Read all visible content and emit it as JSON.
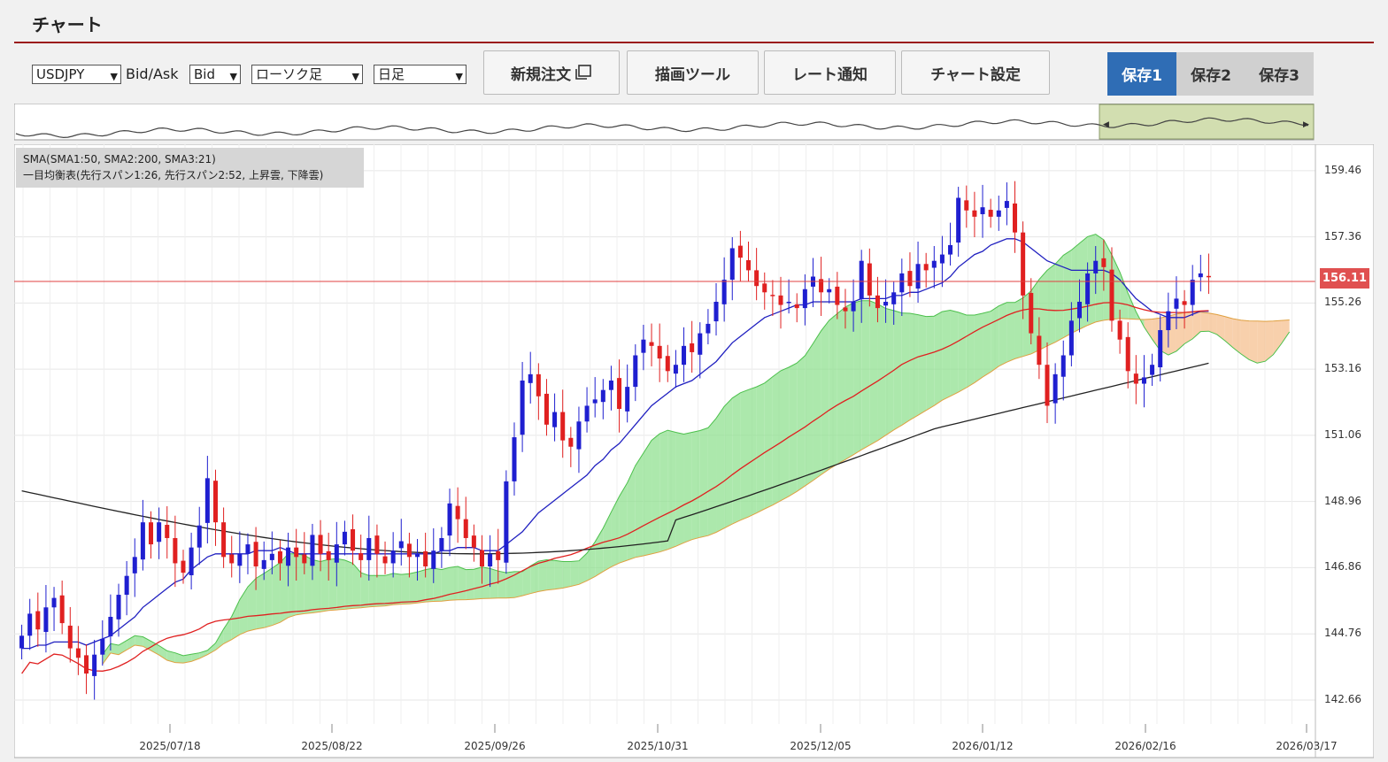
{
  "header": {
    "title": "チャート"
  },
  "toolbar": {
    "symbol": "USDJPY",
    "bidask_label": "Bid/Ask",
    "bidask_value": "Bid",
    "chart_type": "ローソク足",
    "period": "日足",
    "buttons": {
      "new_order": "新規注文",
      "drawing_tool": "描画ツール",
      "rate_alert": "レート通知",
      "chart_settings": "チャート設定"
    },
    "save_tabs": [
      "保存1",
      "保存2",
      "保存3"
    ],
    "active_save": 0
  },
  "legend": {
    "line1": "SMA(SMA1:50, SMA2:200, SMA3:21)",
    "line2": "一目均衡表(先行スパン1:26, 先行スパン2:52, 上昇雲, 下降雲)"
  },
  "current_price": "156.11",
  "colors": {
    "up": "#1f1fd0",
    "down": "#e02020",
    "sma50": "#e02020",
    "sma200": "#222222",
    "sma21": "#2020c0",
    "cloud_up": "#90e090",
    "cloud_down": "#f5c090",
    "accent": "#2f6db5"
  },
  "chart_data": {
    "type": "candlestick",
    "y_ticks": [
      "159.46",
      "157.36",
      "155.26",
      "153.16",
      "151.06",
      "148.96",
      "146.86",
      "144.76",
      "142.66"
    ],
    "x_ticks": [
      "2025/07/18",
      "2025/08/22",
      "2025/09/26",
      "2025/10/31",
      "2025/12/05",
      "2026/01/12",
      "2026/02/16",
      "2026/03/17"
    ],
    "ylim": [
      141.9,
      160.3
    ],
    "closes": [
      144.7,
      145.4,
      144.9,
      145.6,
      145.9,
      145.1,
      144.3,
      144.0,
      143.5,
      144.1,
      144.6,
      145.3,
      146.0,
      146.6,
      147.2,
      148.3,
      147.6,
      148.3,
      147.8,
      147.0,
      146.7,
      147.5,
      148.2,
      149.7,
      148.3,
      147.2,
      147.0,
      147.3,
      147.6,
      146.9,
      147.1,
      147.3,
      147.0,
      147.5,
      147.2,
      147.0,
      147.9,
      147.3,
      147.1,
      147.6,
      148.0,
      147.4,
      147.1,
      147.8,
      147.3,
      147.0,
      147.4,
      147.7,
      147.2,
      147.3,
      146.9,
      147.4,
      147.8,
      148.9,
      148.4,
      147.8,
      147.5,
      146.9,
      147.3,
      147.1,
      149.6,
      151.0,
      152.8,
      153.0,
      152.3,
      151.4,
      151.8,
      150.9,
      150.7,
      151.5,
      152.0,
      152.2,
      152.5,
      152.8,
      151.9,
      152.6,
      153.6,
      154.1,
      153.9,
      153.5,
      153.1,
      153.3,
      153.9,
      153.7,
      154.3,
      154.6,
      155.3,
      156.0,
      157.0,
      156.7,
      156.3,
      155.8,
      155.6,
      155.5,
      155.2,
      155.3,
      155.1,
      155.7,
      156.1,
      155.6,
      155.7,
      155.2,
      155.0,
      155.3,
      156.6,
      155.5,
      155.1,
      155.3,
      155.6,
      156.2,
      155.8,
      156.5,
      156.3,
      156.6,
      156.8,
      157.1,
      158.6,
      158.2,
      158.0,
      158.3,
      158.0,
      158.2,
      158.5,
      157.5,
      155.5,
      154.3,
      153.3,
      152.0,
      153.0,
      153.6,
      154.7,
      155.3,
      156.2,
      156.6,
      156.4,
      154.7,
      154.1,
      153.1,
      152.7,
      152.9,
      153.3,
      154.4,
      155.0,
      155.4,
      155.2,
      156.0,
      156.2,
      156.1
    ],
    "sma21": [
      144.3,
      144.3,
      144.4,
      144.4,
      144.5,
      144.5,
      144.5,
      144.5,
      144.4,
      144.5,
      144.6,
      144.7,
      144.9,
      145.1,
      145.3,
      145.6,
      145.8,
      146.0,
      146.2,
      146.4,
      146.5,
      146.8,
      147.0,
      147.2,
      147.3,
      147.3,
      147.3,
      147.3,
      147.3,
      147.4,
      147.4,
      147.4,
      147.5,
      147.4,
      147.3,
      147.3,
      147.3,
      147.3,
      147.3,
      147.3,
      147.3,
      147.3,
      147.3,
      147.3,
      147.3,
      147.3,
      147.3,
      147.3,
      147.3,
      147.3,
      147.3,
      147.3,
      147.4,
      147.4,
      147.5,
      147.5,
      147.5,
      147.4,
      147.4,
      147.4,
      147.6,
      147.8,
      148.0,
      148.3,
      148.6,
      148.8,
      149.0,
      149.2,
      149.4,
      149.6,
      149.8,
      150.1,
      150.3,
      150.6,
      150.8,
      151.1,
      151.4,
      151.7,
      152.0,
      152.2,
      152.4,
      152.6,
      152.7,
      152.8,
      153.0,
      153.2,
      153.4,
      153.7,
      154.0,
      154.2,
      154.4,
      154.6,
      154.8,
      154.9,
      155.0,
      155.1,
      155.2,
      155.2,
      155.3,
      155.3,
      155.3,
      155.3,
      155.3,
      155.3,
      155.4,
      155.4,
      155.4,
      155.4,
      155.5,
      155.5,
      155.6,
      155.6,
      155.7,
      155.8,
      155.9,
      156.1,
      156.4,
      156.6,
      156.8,
      156.9,
      157.1,
      157.2,
      157.3,
      157.3,
      157.2,
      157.0,
      156.8,
      156.6,
      156.5,
      156.4,
      156.3,
      156.3,
      156.3,
      156.3,
      156.3,
      156.2,
      156.0,
      155.7,
      155.4,
      155.2,
      155.0,
      154.9,
      154.8,
      154.8,
      154.8,
      154.9,
      155.0,
      155.0
    ]
  }
}
